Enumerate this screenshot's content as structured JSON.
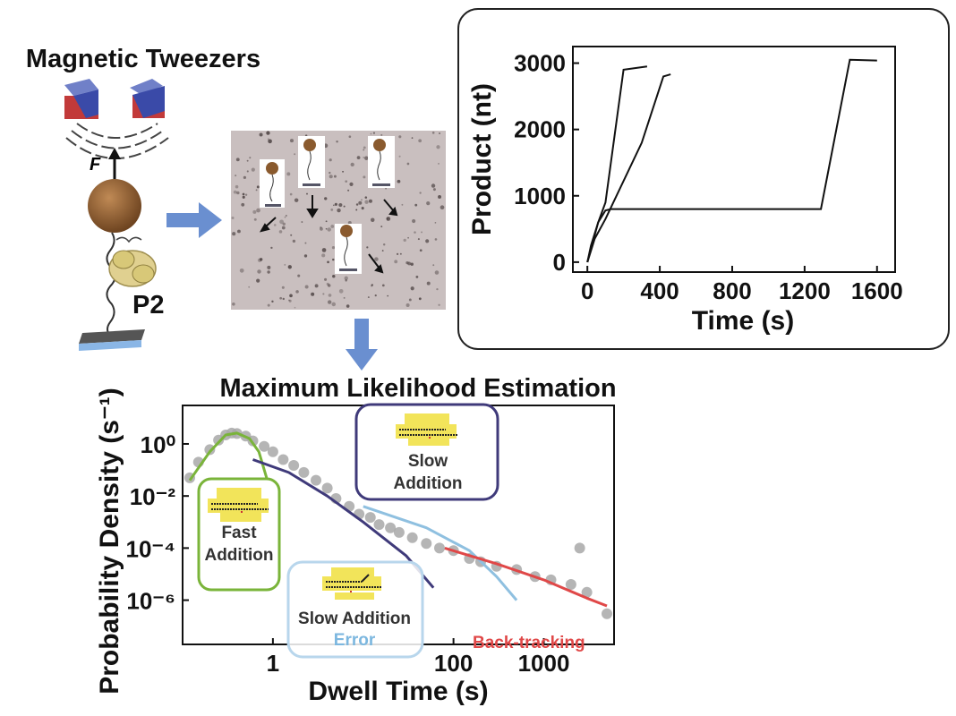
{
  "apparatus": {
    "title": "Magnetic Tweezers",
    "force_label": "F",
    "protein_label": "P2"
  },
  "mle_title": "Maximum Likelihood Estimation",
  "colors": {
    "arrow_blue": "#6a8fd0",
    "fast_green": "#7ab43a",
    "slow_purple": "#3f3a7a",
    "error_blue": "#8fc0e0",
    "error_text": "#7cb7df",
    "backtrack_red": "#e04848",
    "points": "#a8a8a8",
    "magnet_red": "#c23a3a",
    "magnet_blue": "#3a4aa8",
    "bead": "#8a5a2e",
    "stage_blue": "#8ab6e6",
    "dna_yellow": "#f2e45a"
  },
  "boxes": {
    "fast": {
      "line1": "Fast",
      "line2": "Addition"
    },
    "slow": {
      "line1": "Slow",
      "line2": "Addition"
    },
    "error": {
      "line1": "Slow Addition",
      "line2": "Error"
    },
    "backtracking": "Back-tracking"
  },
  "chart_data": [
    {
      "type": "line",
      "xlabel": "Time (s)",
      "ylabel": "Product (nt)",
      "xlim": [
        -80,
        1700
      ],
      "ylim": [
        -150,
        3250
      ],
      "xticks": [
        0,
        400,
        800,
        1200,
        1600
      ],
      "yticks": [
        0,
        1000,
        2000,
        3000
      ],
      "series": [
        {
          "points": [
            [
              0,
              0
            ],
            [
              20,
              250
            ],
            [
              60,
              600
            ],
            [
              100,
              900
            ],
            [
              200,
              2900
            ],
            [
              330,
              2950
            ]
          ]
        },
        {
          "points": [
            [
              0,
              0
            ],
            [
              40,
              350
            ],
            [
              100,
              650
            ],
            [
              300,
              1800
            ],
            [
              420,
              2800
            ],
            [
              460,
              2830
            ]
          ]
        },
        {
          "points": [
            [
              0,
              0
            ],
            [
              30,
              300
            ],
            [
              60,
              600
            ],
            [
              100,
              780
            ],
            [
              130,
              800
            ],
            [
              1290,
              800
            ],
            [
              1450,
              3050
            ],
            [
              1600,
              3040
            ]
          ]
        }
      ]
    },
    {
      "type": "scatter",
      "xlabel": "Dwell Time (s)",
      "ylabel": "Probability Density (s⁻¹)",
      "xscale": "log",
      "yscale": "log",
      "xlim": [
        0.1,
        6000
      ],
      "ylim": [
        2e-08,
        30
      ],
      "xticks": [
        1,
        100,
        1000
      ],
      "yticks": [
        1,
        0.01,
        0.0001,
        1e-06
      ],
      "ytick_labels": [
        "10⁰",
        "10⁻²",
        "10⁻⁴",
        "10⁻⁶"
      ],
      "points": [
        [
          0.12,
          0.05
        ],
        [
          0.15,
          0.2
        ],
        [
          0.2,
          0.6
        ],
        [
          0.25,
          1.4
        ],
        [
          0.3,
          2.2
        ],
        [
          0.35,
          2.6
        ],
        [
          0.4,
          2.5
        ],
        [
          0.5,
          2.0
        ],
        [
          0.6,
          1.3
        ],
        [
          0.8,
          0.8
        ],
        [
          1.0,
          0.5
        ],
        [
          1.3,
          0.25
        ],
        [
          1.7,
          0.15
        ],
        [
          2.2,
          0.08
        ],
        [
          3,
          0.04
        ],
        [
          4,
          0.02
        ],
        [
          5,
          0.008
        ],
        [
          7,
          0.004
        ],
        [
          9,
          0.002
        ],
        [
          12,
          0.0015
        ],
        [
          15,
          0.0008
        ],
        [
          20,
          0.0006
        ],
        [
          25,
          0.0004
        ],
        [
          35,
          0.00025
        ],
        [
          50,
          0.00015
        ],
        [
          70,
          0.0001
        ],
        [
          100,
          8e-05
        ],
        [
          150,
          4e-05
        ],
        [
          200,
          3e-05
        ],
        [
          300,
          2e-05
        ],
        [
          500,
          1.5e-05
        ],
        [
          800,
          8e-06
        ],
        [
          1200,
          6e-06
        ],
        [
          2000,
          4e-06
        ],
        [
          2500,
          0.0001
        ],
        [
          3000,
          2e-06
        ],
        [
          5000,
          3e-07
        ]
      ],
      "fits": [
        {
          "name": "fast",
          "color": "#7ab43a",
          "points": [
            [
              0.12,
              0.04
            ],
            [
              0.2,
              0.5
            ],
            [
              0.3,
              2.2
            ],
            [
              0.4,
              2.6
            ],
            [
              0.55,
              1.6
            ],
            [
              0.7,
              0.5
            ],
            [
              0.85,
              0.05
            ],
            [
              1.0,
              0.003
            ]
          ]
        },
        {
          "name": "slow",
          "color": "#3f3a7a",
          "points": [
            [
              0.6,
              0.25
            ],
            [
              1.5,
              0.08
            ],
            [
              4,
              0.01
            ],
            [
              10,
              0.001
            ],
            [
              30,
              5e-05
            ],
            [
              60,
              3e-06
            ]
          ]
        },
        {
          "name": "error",
          "color": "#8fc0e0",
          "points": [
            [
              10,
              0.004
            ],
            [
              50,
              0.0006
            ],
            [
              150,
              8e-05
            ],
            [
              300,
              8e-06
            ],
            [
              500,
              1e-06
            ]
          ]
        },
        {
          "name": "backtracking",
          "color": "#e04848",
          "points": [
            [
              80,
              0.0001
            ],
            [
              300,
              2.5e-05
            ],
            [
              1000,
              6e-06
            ],
            [
              3000,
              1.2e-06
            ],
            [
              5000,
              6e-07
            ]
          ]
        }
      ]
    }
  ]
}
